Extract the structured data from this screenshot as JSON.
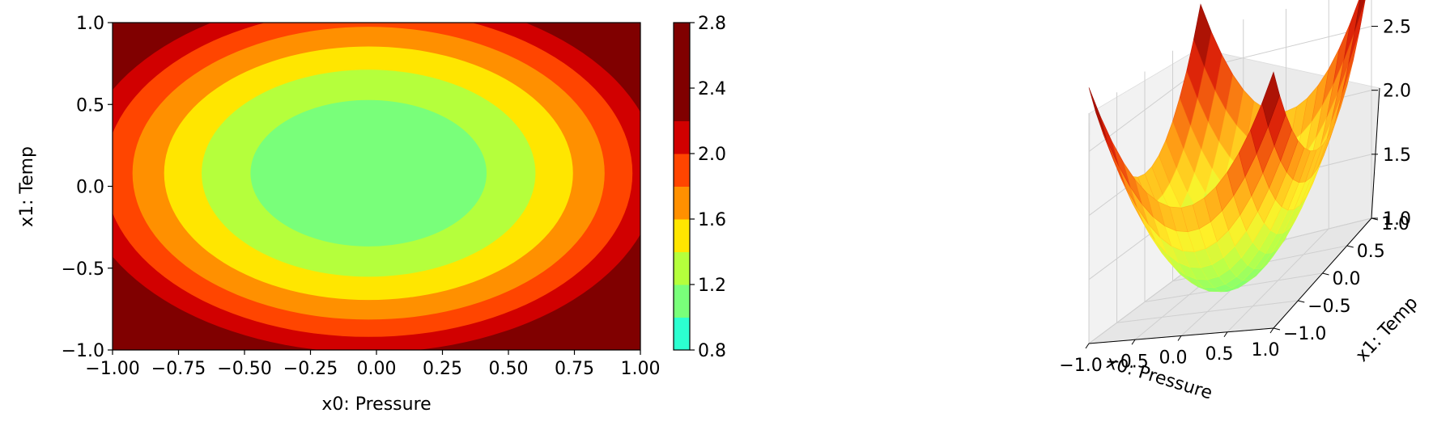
{
  "chart_data": [
    {
      "type": "heatmap",
      "subtype": "filled-contour",
      "function": "z = x0^2 + x1^2 + 1 (sampled on a grid)",
      "xlabel": "x0: Pressure",
      "ylabel": "x1: Temp",
      "xlim": [
        -1.0,
        1.0
      ],
      "ylim": [
        -1.0,
        1.0
      ],
      "x_ticks": [
        "−1.00",
        "−0.75",
        "−0.50",
        "−0.25",
        "0.00",
        "0.25",
        "0.50",
        "0.75",
        "1.00"
      ],
      "y_ticks": [
        "−1.0",
        "−0.5",
        "0.0",
        "0.5",
        "1.0"
      ],
      "levels": [
        0.8,
        1.0,
        1.2,
        1.4,
        1.6,
        1.8,
        2.0,
        2.2,
        2.4,
        2.6,
        2.8
      ],
      "level_colors": [
        "#2cffd0",
        "#79ff7a",
        "#b5ff3c",
        "#ffe600",
        "#ff9000",
        "#ff4500",
        "#d10000",
        "#800000",
        "#800000",
        "#800000"
      ],
      "colorbar_ticks": [
        "0.8",
        "1.2",
        "1.6",
        "2.0",
        "2.4",
        "2.8"
      ],
      "colorbar_range": [
        0.8,
        2.8
      ],
      "colormap": "jet-like (cyan → green → yellow → orange → red → dark red)"
    },
    {
      "type": "surface",
      "function": "z = x0^2 + x1^2 + 1",
      "xlabel": "x0: Pressure",
      "ylabel": "x1: Temp",
      "xlim": [
        -1.0,
        1.0
      ],
      "ylim": [
        -1.0,
        1.0
      ],
      "zlim": [
        1.0,
        2.8
      ],
      "x_ticks": [
        "−1.0",
        "−0.5",
        "0.0",
        "0.5",
        "1.0"
      ],
      "y_ticks": [
        "−1.0",
        "−0.5",
        "0.0",
        "0.5",
        "1.0"
      ],
      "z_ticks": [
        "1.0",
        "1.5",
        "2.0",
        "2.5"
      ],
      "colormap": "hot (green → yellow → orange → red → dark red)",
      "grid": true
    }
  ]
}
